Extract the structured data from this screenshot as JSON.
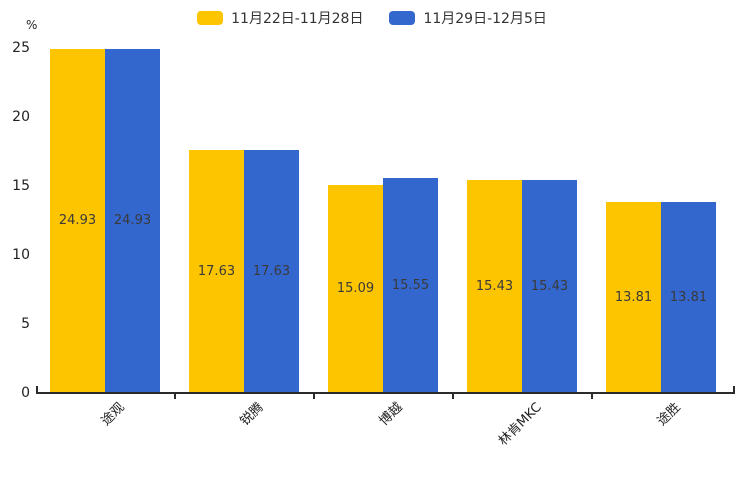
{
  "chart_data": {
    "type": "bar",
    "title": "",
    "categories": [
      "途观",
      "锐腾",
      "博越",
      "林肯MKC",
      "途胜"
    ],
    "series": [
      {
        "name": "11月22日-11月28日",
        "color": "#FDC500",
        "values": [
          24.93,
          17.63,
          15.09,
          15.43,
          13.81
        ]
      },
      {
        "name": "11月29日-12月5日",
        "color": "#3467CE",
        "values": [
          24.93,
          17.63,
          15.55,
          15.43,
          13.81
        ]
      }
    ],
    "value_labels": [
      "24.93",
      "17.63",
      "15.09",
      "15.43",
      "13.81",
      "24.93",
      "17.63",
      "15.55",
      "15.43",
      "13.81"
    ],
    "ylabel": "%",
    "ylim": [
      0,
      25
    ],
    "y_ticks": [
      0,
      5,
      10,
      15,
      20,
      25
    ],
    "grid": false,
    "legend_position": "top-center",
    "value_label_position": "center-of-bar",
    "x_label_rotation_deg": 45
  },
  "colors": {
    "background": "#ffffff",
    "axis": "#2b2b2b",
    "tick_label_text": "#222222",
    "value_label_text": "#3a3a3a",
    "legend_text": "#333333"
  }
}
